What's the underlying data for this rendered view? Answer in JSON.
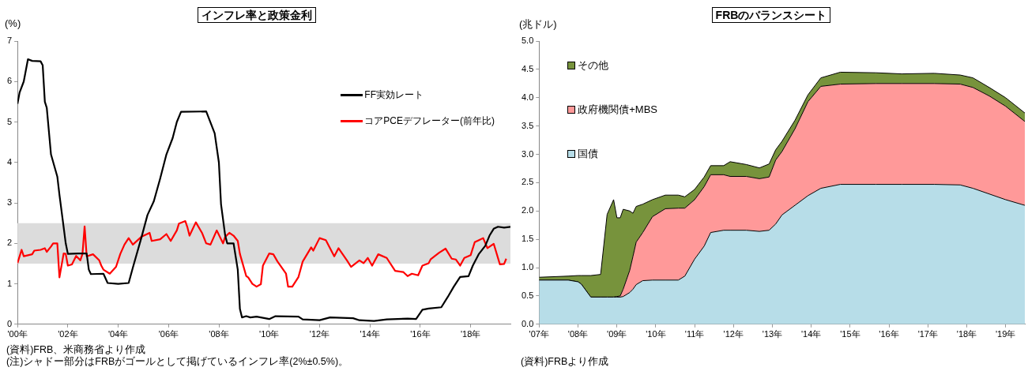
{
  "chart_data": [
    {
      "type": "line",
      "title": "インフレ率と政策金利",
      "ylabel": "(%)",
      "xlim": [
        "2000-01",
        "2019-08"
      ],
      "xticks": [
        {
          "value": "2000-01",
          "label": "'00年"
        },
        {
          "value": "2002-01",
          "label": "'02年"
        },
        {
          "value": "2004-01",
          "label": "'04年"
        },
        {
          "value": "2006-01",
          "label": "'06年"
        },
        {
          "value": "2008-01",
          "label": "'08年"
        },
        {
          "value": "2010-01",
          "label": "'10年"
        },
        {
          "value": "2012-01",
          "label": "'12年"
        },
        {
          "value": "2014-01",
          "label": "'14年"
        },
        {
          "value": "2016-01",
          "label": "'16年"
        },
        {
          "value": "2018-01",
          "label": "'18年"
        }
      ],
      "ylim": [
        0,
        7
      ],
      "yticks": [
        0,
        1,
        2,
        3,
        4,
        5,
        6,
        7
      ],
      "grid": false,
      "legend": "top right",
      "bands": [
        {
          "axis": "y",
          "from": 1.5,
          "to": 2.5,
          "color": "#dcdcdc"
        }
      ],
      "annotations": [
        "(資料)FRB、米商務省より作成",
        "(注)シャドー部分はFRBがゴールとして掲げているインフレ率(2%±0.5%)。"
      ],
      "series": [
        {
          "name": "FF実効レート",
          "color": "#000000",
          "x": [
            "2000-01",
            "2000-02",
            "2000-04",
            "2000-06",
            "2000-08",
            "2000-12",
            "2001-01",
            "2001-02",
            "2001-03",
            "2001-05",
            "2001-08",
            "2001-09",
            "2001-11",
            "2001-12",
            "2002-01",
            "2002-06",
            "2002-10",
            "2002-11",
            "2002-12",
            "2003-06",
            "2003-08",
            "2004-01",
            "2004-06",
            "2004-08",
            "2004-12",
            "2005-03",
            "2005-06",
            "2005-09",
            "2005-12",
            "2006-03",
            "2006-05",
            "2006-07",
            "2007-07",
            "2007-09",
            "2007-11",
            "2008-01",
            "2008-02",
            "2008-04",
            "2008-05",
            "2008-08",
            "2008-10",
            "2008-11",
            "2008-12",
            "2009-02",
            "2009-04",
            "2009-07",
            "2010-01",
            "2010-04",
            "2011-03",
            "2011-05",
            "2012-01",
            "2012-06",
            "2013-05",
            "2013-08",
            "2014-03",
            "2014-09",
            "2015-07",
            "2015-11",
            "2016-02",
            "2016-05",
            "2016-11",
            "2017-02",
            "2017-05",
            "2017-08",
            "2017-12",
            "2018-02",
            "2018-05",
            "2018-08",
            "2018-10",
            "2018-12",
            "2019-02",
            "2019-05",
            "2019-08"
          ],
          "values": [
            5.45,
            5.73,
            6.0,
            6.55,
            6.51,
            6.5,
            6.4,
            5.5,
            5.35,
            4.2,
            3.65,
            3.2,
            2.4,
            2.0,
            1.74,
            1.75,
            1.75,
            1.35,
            1.24,
            1.25,
            1.02,
            1.0,
            1.02,
            1.4,
            2.13,
            2.7,
            3.04,
            3.6,
            4.2,
            4.6,
            5.0,
            5.25,
            5.26,
            4.99,
            4.72,
            4.0,
            2.97,
            2.2,
            2.0,
            2.0,
            1.35,
            0.38,
            0.17,
            0.2,
            0.17,
            0.19,
            0.13,
            0.2,
            0.19,
            0.12,
            0.1,
            0.17,
            0.15,
            0.1,
            0.08,
            0.12,
            0.14,
            0.13,
            0.36,
            0.39,
            0.42,
            0.67,
            0.93,
            1.17,
            1.19,
            1.45,
            1.74,
            1.94,
            2.19,
            2.36,
            2.41,
            2.39,
            2.41
          ]
        },
        {
          "name": "コアPCEデフレーター(前年比)",
          "color": "#ff0000",
          "x": [
            "2000-01",
            "2000-03",
            "2000-04",
            "2000-08",
            "2000-09",
            "2000-12",
            "2001-02",
            "2001-03",
            "2001-05",
            "2001-06",
            "2001-08",
            "2001-09",
            "2001-11",
            "2001-12",
            "2002-01",
            "2002-03",
            "2002-05",
            "2002-07",
            "2002-08",
            "2002-09",
            "2002-10",
            "2003-01",
            "2003-04",
            "2003-05",
            "2003-06",
            "2003-09",
            "2003-12",
            "2004-02",
            "2004-04",
            "2004-06",
            "2004-08",
            "2004-12",
            "2005-04",
            "2005-05",
            "2005-09",
            "2005-12",
            "2006-02",
            "2006-05",
            "2006-06",
            "2006-09",
            "2006-10",
            "2006-11",
            "2007-02",
            "2007-05",
            "2007-07",
            "2007-09",
            "2007-12",
            "2008-03",
            "2008-04",
            "2008-06",
            "2008-08",
            "2008-10",
            "2008-11",
            "2009-02",
            "2009-03",
            "2009-05",
            "2009-07",
            "2009-09",
            "2009-10",
            "2010-01",
            "2010-03",
            "2010-05",
            "2010-09",
            "2010-10",
            "2010-12",
            "2011-03",
            "2011-05",
            "2011-09",
            "2011-10",
            "2012-01",
            "2012-04",
            "2012-06",
            "2012-08",
            "2012-10",
            "2013-02",
            "2013-04",
            "2013-08",
            "2013-10",
            "2013-12",
            "2014-02",
            "2014-05",
            "2014-09",
            "2015-01",
            "2015-05",
            "2015-07",
            "2015-09",
            "2015-12",
            "2016-02",
            "2016-05",
            "2016-06",
            "2016-09",
            "2016-10",
            "2017-01",
            "2017-04",
            "2017-06",
            "2017-08",
            "2017-10",
            "2018-01",
            "2018-03",
            "2018-05",
            "2018-07",
            "2018-09",
            "2018-12",
            "2019-03",
            "2019-05",
            "2019-06"
          ],
          "values": [
            1.51,
            1.84,
            1.68,
            1.73,
            1.82,
            1.84,
            1.88,
            1.79,
            1.92,
            2.0,
            2.0,
            1.16,
            1.75,
            1.74,
            1.45,
            1.48,
            1.69,
            1.58,
            1.74,
            2.42,
            1.68,
            1.73,
            1.58,
            1.45,
            1.35,
            1.25,
            1.42,
            1.74,
            1.97,
            2.13,
            1.97,
            2.16,
            2.26,
            2.06,
            2.1,
            2.23,
            2.06,
            2.32,
            2.49,
            2.55,
            2.4,
            2.19,
            2.52,
            2.26,
            2.0,
            1.97,
            2.32,
            2.0,
            2.16,
            2.26,
            2.19,
            2.06,
            1.74,
            1.19,
            1.16,
            1.0,
            0.93,
            0.99,
            1.45,
            1.75,
            1.73,
            1.55,
            1.25,
            0.93,
            0.93,
            1.17,
            1.55,
            1.9,
            1.82,
            2.13,
            2.08,
            1.88,
            1.68,
            1.88,
            1.58,
            1.42,
            1.58,
            1.51,
            1.64,
            1.45,
            1.73,
            1.64,
            1.32,
            1.29,
            1.19,
            1.25,
            1.21,
            1.45,
            1.51,
            1.61,
            1.73,
            1.77,
            1.87,
            1.62,
            1.6,
            1.45,
            1.64,
            1.71,
            2.03,
            2.08,
            2.13,
            1.88,
            1.99,
            1.48,
            1.49,
            1.62
          ]
        }
      ]
    },
    {
      "type": "area",
      "title": "FRBのバランスシート",
      "ylabel": "(兆ドル)",
      "stacked": true,
      "xlim": [
        "2007-01",
        "2019-07"
      ],
      "xticks": [
        {
          "value": "2007-01",
          "label": "'07年"
        },
        {
          "value": "2008-01",
          "label": "'08年"
        },
        {
          "value": "2009-01",
          "label": "'09年"
        },
        {
          "value": "2010-01",
          "label": "'10年"
        },
        {
          "value": "2011-01",
          "label": "'11年"
        },
        {
          "value": "2012-01",
          "label": "'12年"
        },
        {
          "value": "2013-01",
          "label": "'13年"
        },
        {
          "value": "2014-01",
          "label": "'14年"
        },
        {
          "value": "2015-01",
          "label": "'15年"
        },
        {
          "value": "2016-01",
          "label": "'16年"
        },
        {
          "value": "2017-01",
          "label": "'17年"
        },
        {
          "value": "2018-01",
          "label": "'18年"
        },
        {
          "value": "2019-01",
          "label": "'19年"
        }
      ],
      "ylim": [
        0,
        5
      ],
      "yticks": [
        {
          "value": 0,
          "label": "0.0"
        },
        {
          "value": 0.5,
          "label": "0.5"
        },
        {
          "value": 1,
          "label": "1.0"
        },
        {
          "value": 1.5,
          "label": "1.5"
        },
        {
          "value": 2,
          "label": "2.0"
        },
        {
          "value": 2.5,
          "label": "2.5"
        },
        {
          "value": 3,
          "label": "3.0"
        },
        {
          "value": 3.5,
          "label": "3.5"
        },
        {
          "value": 4,
          "label": "4.0"
        },
        {
          "value": 4.5,
          "label": "4.5"
        },
        {
          "value": 5,
          "label": "5.0"
        }
      ],
      "grid": false,
      "legend": "top left",
      "annotations": [
        "(資料)FRBより作成"
      ],
      "x": [
        "2007-01",
        "2007-10",
        "2008-01",
        "2008-02",
        "2008-05",
        "2008-08",
        "2008-10",
        "2008-12",
        "2009-01",
        "2009-02",
        "2009-03",
        "2009-05",
        "2009-06",
        "2009-07",
        "2009-09",
        "2009-12",
        "2010-04",
        "2010-08",
        "2010-10",
        "2011-01",
        "2011-04",
        "2011-06",
        "2011-10",
        "2011-12",
        "2012-05",
        "2012-09",
        "2012-12",
        "2013-02",
        "2013-04",
        "2013-08",
        "2013-12",
        "2014-04",
        "2014-10",
        "2015-09",
        "2016-05",
        "2017-03",
        "2017-11",
        "2018-03",
        "2018-08",
        "2019-01",
        "2019-07"
      ],
      "series": [
        {
          "name": "国債",
          "color": "#b7dde8",
          "values": [
            0.78,
            0.78,
            0.75,
            0.71,
            0.48,
            0.48,
            0.48,
            0.48,
            0.48,
            0.48,
            0.49,
            0.56,
            0.62,
            0.7,
            0.77,
            0.78,
            0.78,
            0.78,
            0.85,
            1.15,
            1.38,
            1.62,
            1.66,
            1.66,
            1.66,
            1.64,
            1.66,
            1.77,
            1.93,
            2.1,
            2.27,
            2.4,
            2.47,
            2.47,
            2.47,
            2.47,
            2.46,
            2.4,
            2.3,
            2.2,
            2.1
          ]
        },
        {
          "name": "政府機関債+MBS",
          "color": "#ff9999",
          "values": [
            0,
            0,
            0,
            0,
            0,
            0,
            0,
            0,
            0.01,
            0.02,
            0.13,
            0.39,
            0.58,
            0.75,
            0.85,
            1.12,
            1.26,
            1.27,
            1.2,
            1.05,
            1.05,
            1.02,
            0.98,
            0.95,
            0.95,
            0.93,
            0.94,
            1.13,
            1.12,
            1.35,
            1.66,
            1.8,
            1.77,
            1.78,
            1.78,
            1.78,
            1.78,
            1.78,
            1.73,
            1.65,
            1.48
          ]
        },
        {
          "name": "その他",
          "color": "#77933c",
          "values": [
            0.05,
            0.07,
            0.11,
            0.15,
            0.38,
            0.4,
            1.46,
            1.72,
            1.39,
            1.38,
            1.41,
            1.05,
            0.76,
            0.63,
            0.5,
            0.3,
            0.24,
            0.23,
            0.2,
            0.18,
            0.17,
            0.16,
            0.16,
            0.26,
            0.21,
            0.19,
            0.23,
            0.18,
            0.18,
            0.15,
            0.12,
            0.15,
            0.21,
            0.19,
            0.17,
            0.18,
            0.16,
            0.17,
            0.15,
            0.15,
            0.15
          ]
        }
      ]
    }
  ]
}
